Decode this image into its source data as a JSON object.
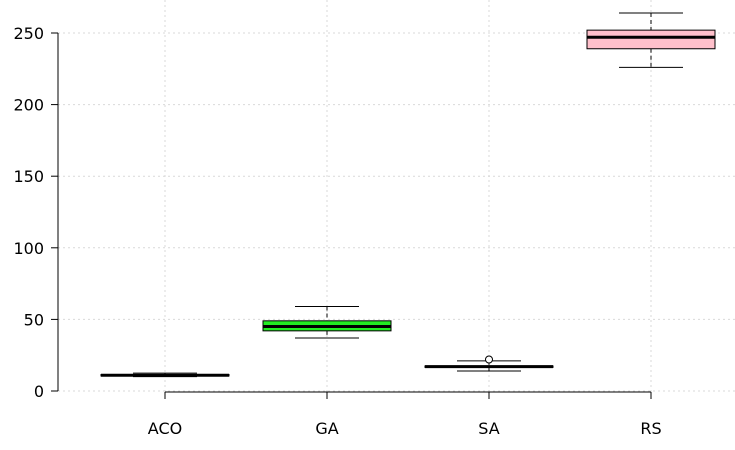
{
  "chart_data": {
    "type": "boxplot",
    "categories": [
      "ACO",
      "GA",
      "SA",
      "RS"
    ],
    "boxes": [
      {
        "name": "ACO",
        "min": 10,
        "q1": 10.5,
        "median": 11,
        "q3": 11.5,
        "max": 12.5,
        "outliers": [],
        "color": "#ffffff"
      },
      {
        "name": "GA",
        "min": 37,
        "q1": 42,
        "median": 45,
        "q3": 49,
        "max": 59,
        "outliers": [],
        "color": "#22ee22"
      },
      {
        "name": "SA",
        "min": 14,
        "q1": 16.5,
        "median": 17,
        "q3": 17.5,
        "max": 21,
        "outliers": [
          22
        ],
        "color": "#ffffff"
      },
      {
        "name": "RS",
        "min": 226,
        "q1": 239,
        "median": 247,
        "q3": 252,
        "max": 264,
        "outliers": [],
        "color": "#ffc0cb"
      }
    ],
    "yticks": [
      0,
      50,
      100,
      150,
      200,
      250
    ],
    "ylim": [
      0,
      265
    ],
    "grid": true
  }
}
